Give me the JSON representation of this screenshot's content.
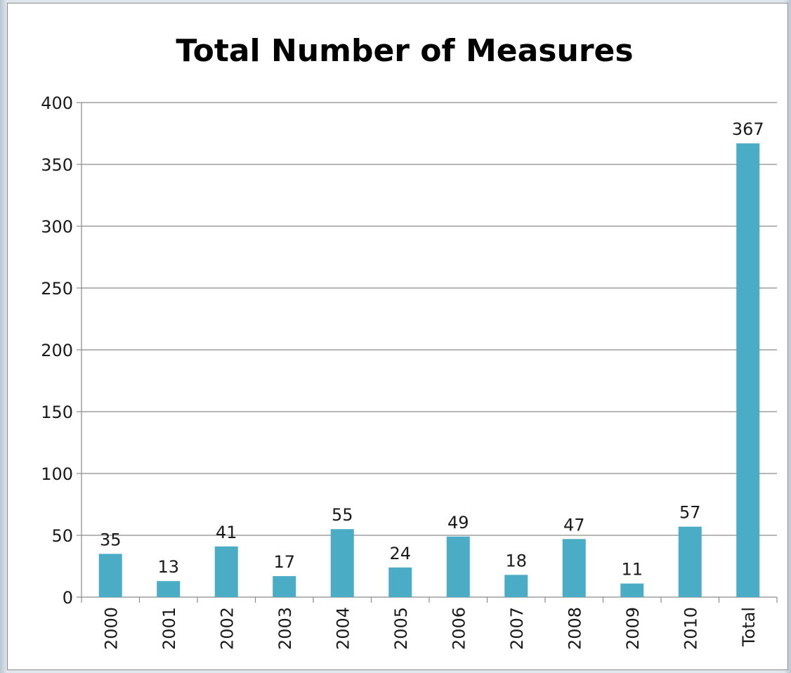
{
  "chart_data": {
    "type": "bar",
    "title": "Total Number of Measures",
    "xlabel": "",
    "ylabel": "",
    "categories": [
      "2000",
      "2001",
      "2002",
      "2003",
      "2004",
      "2005",
      "2006",
      "2007",
      "2008",
      "2009",
      "2010",
      "Total"
    ],
    "values": [
      35,
      13,
      41,
      17,
      55,
      24,
      49,
      18,
      47,
      11,
      57,
      367
    ],
    "data_labels": [
      "35",
      "13",
      "41",
      "17",
      "55",
      "24",
      "49",
      "18",
      "47",
      "11",
      "57",
      "367"
    ],
    "ylim": [
      0,
      400
    ],
    "yticks": [
      "0",
      "50",
      "100",
      "150",
      "200",
      "250",
      "300",
      "350",
      "400"
    ],
    "ytick_values": [
      0,
      50,
      100,
      150,
      200,
      250,
      300,
      350,
      400
    ],
    "grid": "horizontal",
    "legend": "none",
    "x_tick_rotation": "vertical",
    "bar_color": "#4bacc6"
  }
}
